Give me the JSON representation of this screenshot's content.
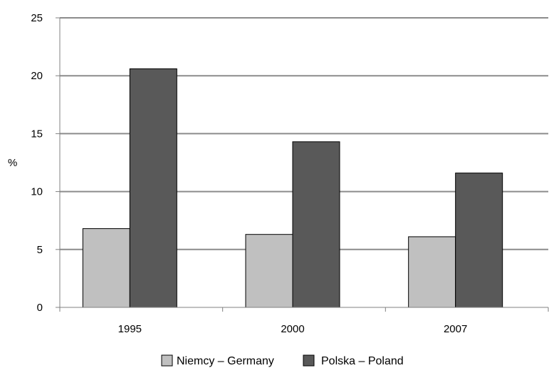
{
  "chart_data": {
    "type": "bar",
    "categories": [
      "1995",
      "2000",
      "2007"
    ],
    "series": [
      {
        "name": "Niemcy – Germany",
        "values": [
          6.8,
          6.3,
          6.1
        ],
        "color": "#c0c0c0"
      },
      {
        "name": "Polska – Poland",
        "values": [
          20.6,
          14.3,
          11.6
        ],
        "color": "#595959"
      }
    ],
    "title": "",
    "xlabel": "",
    "ylabel": "%",
    "ylim": [
      0,
      25
    ],
    "yticks": [
      "0",
      "5",
      "10",
      "15",
      "20",
      "25"
    ],
    "grid": true,
    "legend_position": "bottom-center"
  }
}
